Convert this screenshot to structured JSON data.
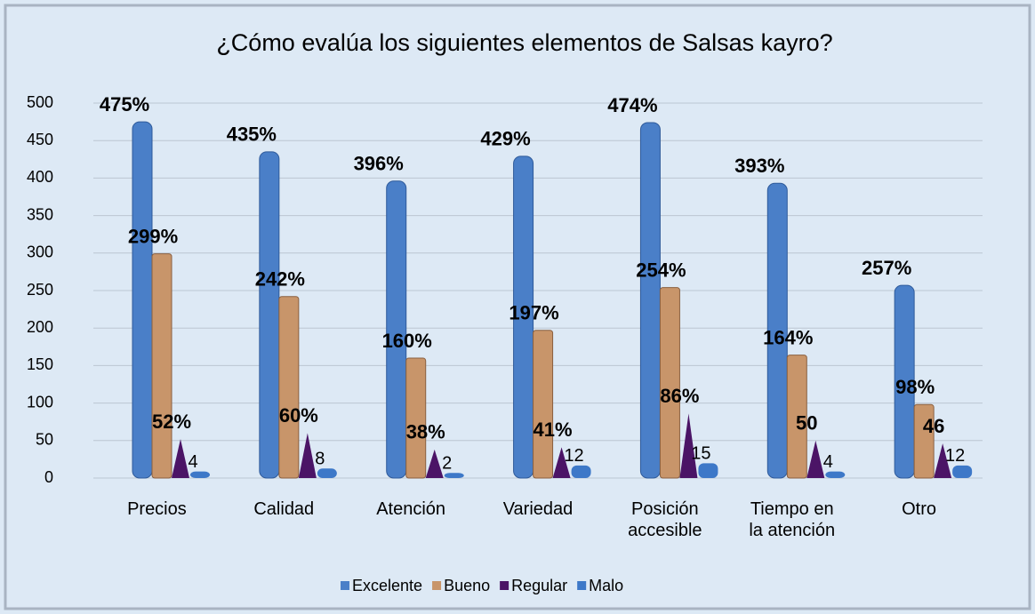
{
  "chart_data": {
    "type": "bar",
    "title": "¿Cómo evalúa los siguientes elementos de Salsas kayro?",
    "categories": [
      "Precios",
      "Calidad",
      "Atención",
      "Variedad",
      "Posición accesible",
      "Tiempo en la atención",
      "Otro"
    ],
    "series": [
      {
        "name": "Excelente",
        "color": "#4a7fc8",
        "values": [
          475,
          435,
          396,
          429,
          474,
          393,
          257
        ],
        "value_labels": [
          "475%",
          "435%",
          "396%",
          "429%",
          "474%",
          "393%",
          "257%"
        ]
      },
      {
        "name": "Bueno",
        "color": "#c8956a",
        "values": [
          299,
          242,
          160,
          197,
          254,
          164,
          98
        ],
        "value_labels": [
          "299%",
          "242%",
          "160%",
          "197%",
          "254%",
          "164%",
          "98%"
        ]
      },
      {
        "name": "Regular",
        "color": "#4b1466",
        "values": [
          52,
          60,
          38,
          41,
          86,
          50,
          46
        ],
        "value_labels": [
          "52%",
          "60%",
          "38%",
          "41%",
          "86%",
          "50",
          "46"
        ]
      },
      {
        "name": "Malo",
        "color": "#3d78c8",
        "values": [
          4,
          8,
          2,
          12,
          15,
          4,
          12
        ],
        "value_labels": [
          "4",
          "8",
          "2",
          "12",
          "15",
          "4",
          "12"
        ]
      }
    ],
    "ylim": [
      0,
      500
    ],
    "yticks": [
      0,
      50,
      100,
      150,
      200,
      250,
      300,
      350,
      400,
      450,
      500
    ],
    "grid": true,
    "legend": "bottom"
  }
}
